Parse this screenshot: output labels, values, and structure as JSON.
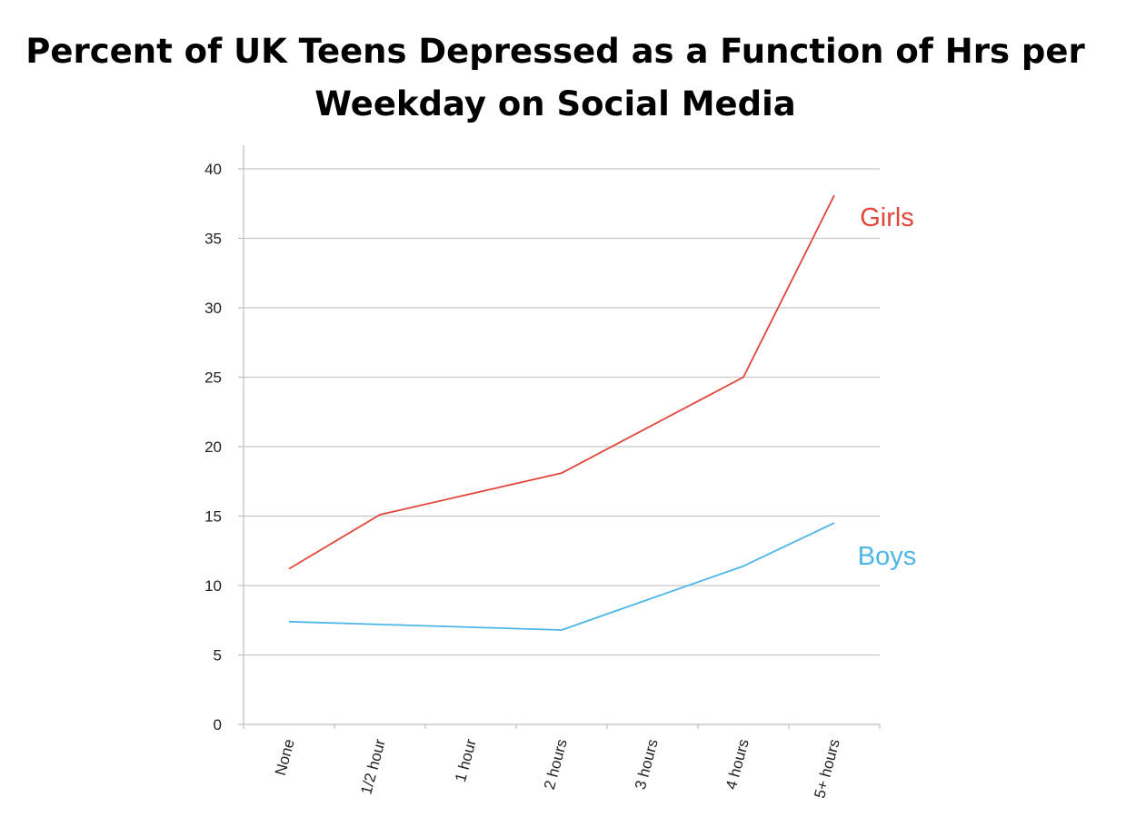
{
  "chart_data": {
    "type": "line",
    "title": "Percent of UK Teens Depressed as a Function of Hrs per Weekday on Social Media",
    "xlabel": "",
    "ylabel": "",
    "categories": [
      "None",
      "1/2 hour",
      "1 hour",
      "2 hours",
      "3 hours",
      "4 hours",
      "5+ hours"
    ],
    "ylim": [
      0,
      40
    ],
    "yticks": [
      "0",
      "5",
      "10",
      "15",
      "20",
      "25",
      "30",
      "35",
      "40"
    ],
    "grid": true,
    "legend": "inline labels at line ends",
    "series": [
      {
        "name": "Girls",
        "color": "#e0463a",
        "points": [
          [
            0,
            11.2
          ],
          [
            1,
            15.1
          ],
          [
            3,
            18.1
          ],
          [
            5,
            25.0
          ],
          [
            6,
            38.1
          ]
        ]
      },
      {
        "name": "Boys",
        "color": "#4cb6e8",
        "points": [
          [
            0,
            7.4
          ],
          [
            3,
            6.8
          ],
          [
            5,
            11.4
          ],
          [
            6,
            14.5
          ]
        ]
      }
    ]
  }
}
